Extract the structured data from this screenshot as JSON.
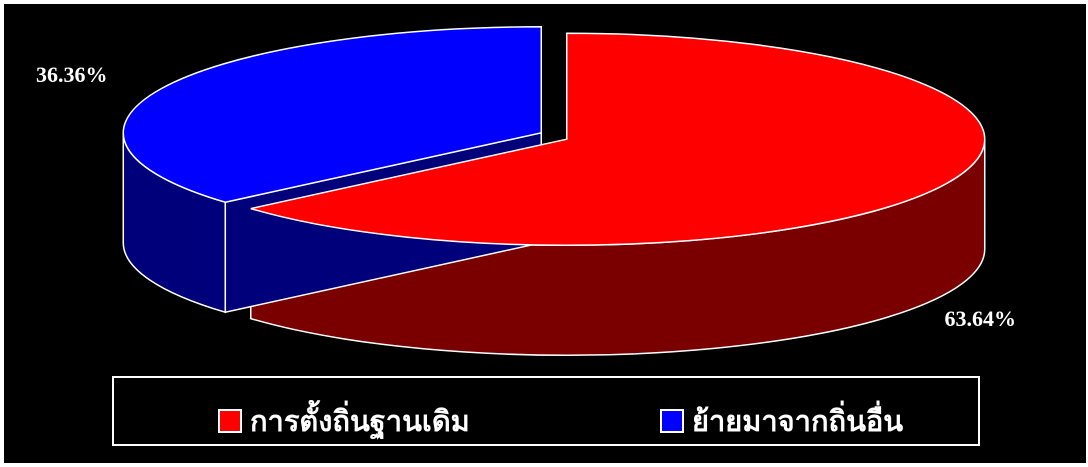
{
  "chart_data": {
    "type": "pie",
    "style": "3d",
    "start_angle_deg": 0,
    "direction": "clockwise",
    "exploded": true,
    "legend_position": "bottom",
    "background": "#000000",
    "series": [
      {
        "values": [
          63.64,
          36.36
        ],
        "labels": [
          "63.64%",
          "36.36%"
        ]
      }
    ],
    "categories": [
      "การตั้งถิ่นฐานเดิม",
      "ย้ายมาจากถิ่นอื่น"
    ],
    "colors": [
      "#ff0000",
      "#0000ff"
    ],
    "side_colors": [
      "#7a0000",
      "#00007a"
    ]
  }
}
